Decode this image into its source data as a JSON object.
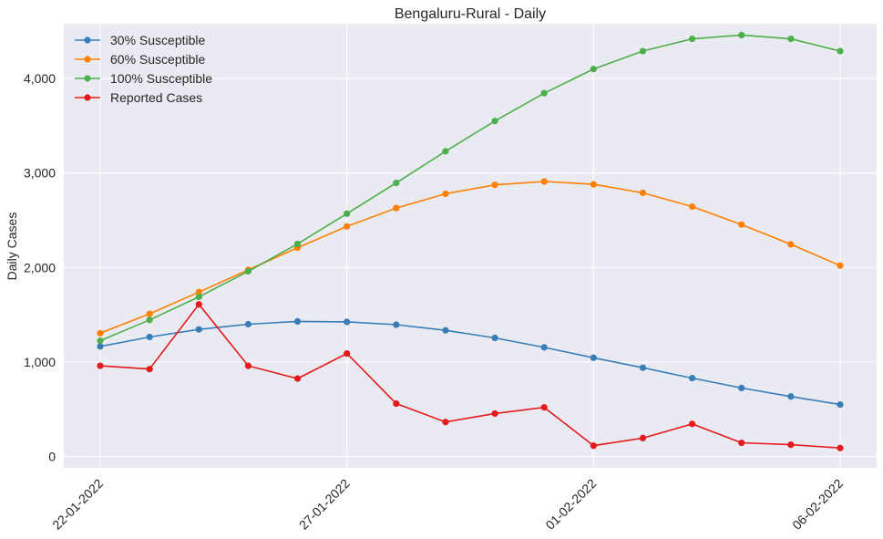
{
  "chart_data": {
    "type": "line",
    "title": "Bengaluru-Rural - Daily",
    "xlabel": "",
    "ylabel": "Daily Cases",
    "x": [
      "22-01-2022",
      "23-01-2022",
      "24-01-2022",
      "25-01-2022",
      "26-01-2022",
      "27-01-2022",
      "28-01-2022",
      "29-01-2022",
      "30-01-2022",
      "31-01-2022",
      "01-02-2022",
      "02-02-2022",
      "03-02-2022",
      "04-02-2022",
      "05-02-2022",
      "06-02-2022"
    ],
    "xticks": [
      "22-01-2022",
      "27-01-2022",
      "01-02-2022",
      "06-02-2022"
    ],
    "yticks": [
      0,
      1000,
      2000,
      3000,
      4000
    ],
    "ytick_labels": [
      "0",
      "1,000",
      "2,000",
      "3,000",
      "4,000"
    ],
    "ylim": [
      -120,
      4580
    ],
    "grid": true,
    "legend_position": "top-left",
    "series": [
      {
        "name": "30% Susceptible",
        "color": "#377eb8",
        "values": [
          1165,
          1265,
          1345,
          1400,
          1430,
          1425,
          1395,
          1335,
          1255,
          1155,
          1045,
          940,
          830,
          725,
          635,
          550
        ]
      },
      {
        "name": "60% Susceptible",
        "color": "#ff7f00",
        "values": [
          1305,
          1510,
          1740,
          1975,
          2210,
          2435,
          2630,
          2780,
          2875,
          2910,
          2880,
          2790,
          2645,
          2455,
          2245,
          2020
        ]
      },
      {
        "name": "100% Susceptible",
        "color": "#4daf4a",
        "values": [
          1225,
          1445,
          1690,
          1960,
          2250,
          2570,
          2895,
          3230,
          3550,
          3845,
          4100,
          4290,
          4420,
          4460,
          4420,
          4290
        ]
      },
      {
        "name": "Reported Cases",
        "color": "#e41a1c",
        "values": [
          960,
          925,
          1610,
          960,
          825,
          1090,
          560,
          365,
          455,
          520,
          115,
          195,
          345,
          145,
          125,
          90
        ]
      }
    ]
  }
}
